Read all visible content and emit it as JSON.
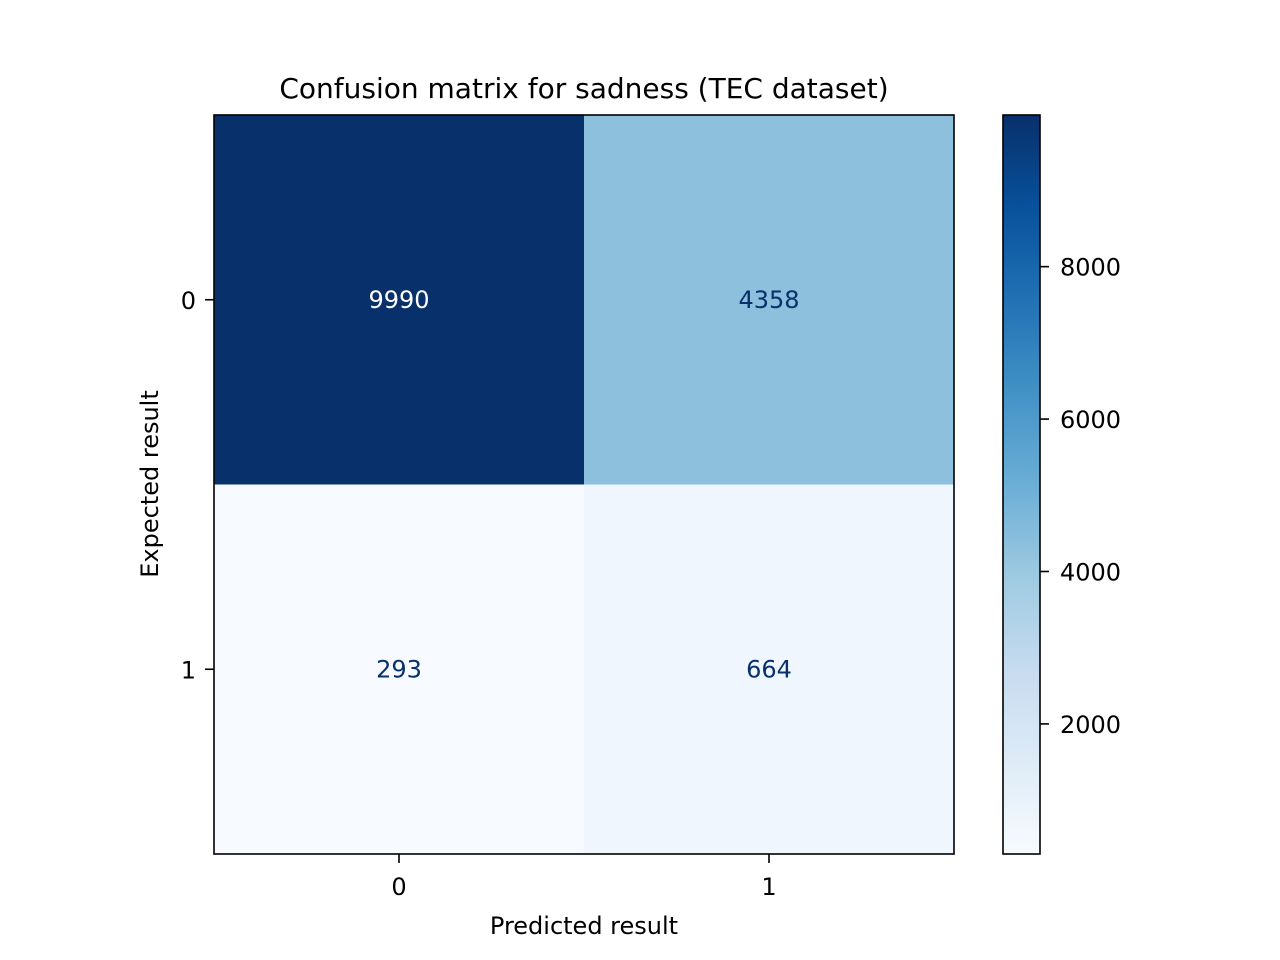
{
  "chart_data": {
    "type": "heatmap",
    "title": "Confusion matrix for sadness (TEC dataset)",
    "xlabel": "Predicted result",
    "ylabel": "Expected result",
    "x_categories": [
      "0",
      "1"
    ],
    "y_categories": [
      "0",
      "1"
    ],
    "values": [
      [
        9990,
        4358
      ],
      [
        293,
        664
      ]
    ],
    "colormap": "Blues",
    "color_range": [
      293,
      9990
    ],
    "colorbar_ticks": [
      2000,
      4000,
      6000,
      8000
    ],
    "colorbar_tick_labels": [
      "2000",
      "4000",
      "6000",
      "8000"
    ],
    "grid": false,
    "legend": "colorbar-right"
  }
}
